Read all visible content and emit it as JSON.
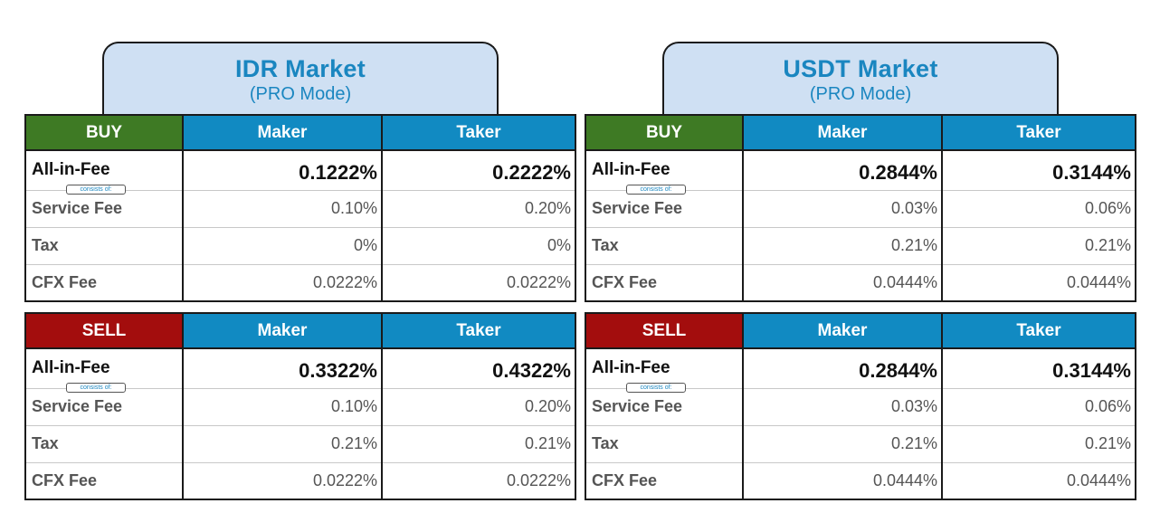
{
  "markets": [
    {
      "title": "IDR Market",
      "subtitle": "(PRO Mode)",
      "columns": {
        "maker": "Maker",
        "taker": "Taker"
      },
      "consists_label": "consists of:",
      "buy": {
        "label": "BUY",
        "rows": [
          {
            "label": "All-in-Fee",
            "maker": "0.1222%",
            "taker": "0.2222%"
          },
          {
            "label": "Service Fee",
            "maker": "0.10%",
            "taker": "0.20%"
          },
          {
            "label": "Tax",
            "maker": "0%",
            "taker": "0%"
          },
          {
            "label": "CFX Fee",
            "maker": "0.0222%",
            "taker": "0.0222%"
          }
        ]
      },
      "sell": {
        "label": "SELL",
        "rows": [
          {
            "label": "All-in-Fee",
            "maker": "0.3322%",
            "taker": "0.4322%"
          },
          {
            "label": "Service Fee",
            "maker": "0.10%",
            "taker": "0.20%"
          },
          {
            "label": "Tax",
            "maker": "0.21%",
            "taker": "0.21%"
          },
          {
            "label": "CFX Fee",
            "maker": "0.0222%",
            "taker": "0.0222%"
          }
        ]
      }
    },
    {
      "title": "USDT Market",
      "subtitle": "(PRO Mode)",
      "columns": {
        "maker": "Maker",
        "taker": "Taker"
      },
      "consists_label": "consists of:",
      "buy": {
        "label": "BUY",
        "rows": [
          {
            "label": "All-in-Fee",
            "maker": "0.2844%",
            "taker": "0.3144%"
          },
          {
            "label": "Service Fee",
            "maker": "0.03%",
            "taker": "0.06%"
          },
          {
            "label": "Tax",
            "maker": "0.21%",
            "taker": "0.21%"
          },
          {
            "label": "CFX Fee",
            "maker": "0.0444%",
            "taker": "0.0444%"
          }
        ]
      },
      "sell": {
        "label": "SELL",
        "rows": [
          {
            "label": "All-in-Fee",
            "maker": "0.2844%",
            "taker": "0.3144%"
          },
          {
            "label": "Service Fee",
            "maker": "0.03%",
            "taker": "0.06%"
          },
          {
            "label": "Tax",
            "maker": "0.21%",
            "taker": "0.21%"
          },
          {
            "label": "CFX Fee",
            "maker": "0.0444%",
            "taker": "0.0444%"
          }
        ]
      }
    }
  ],
  "colors": {
    "header_tab_bg": "#cfe0f3",
    "title_blue": "#1a86c0",
    "buy_green": "#3e7a24",
    "sell_red": "#a30d0d",
    "column_blue": "#118ac2"
  }
}
